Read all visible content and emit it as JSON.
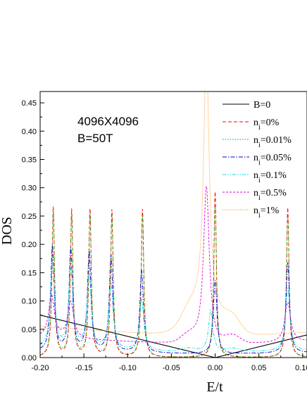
{
  "chart_data": {
    "type": "line",
    "xlabel": "E/t",
    "ylabel": "DOS",
    "xlim": [
      -0.2,
      0.105
    ],
    "ylim": [
      0.0,
      0.47
    ],
    "x_ticks": [
      "-0.20",
      "-0.15",
      "-0.10",
      "-0.05",
      "0.00",
      "0.05",
      "0.10"
    ],
    "x_tick_values": [
      -0.2,
      -0.15,
      -0.1,
      -0.05,
      0.0,
      0.05,
      0.1
    ],
    "y_ticks": [
      "0.00",
      "0.05",
      "0.10",
      "0.15",
      "0.20",
      "0.25",
      "0.30",
      "0.35",
      "0.40",
      "0.45"
    ],
    "y_tick_values": [
      0.0,
      0.05,
      0.1,
      0.15,
      0.2,
      0.25,
      0.3,
      0.35,
      0.4,
      0.45
    ],
    "annotations": [
      "4096X4096",
      "B=50T"
    ],
    "legend_position": "top-right",
    "series": [
      {
        "name": "B=0",
        "color": "#000000",
        "dash": "solid",
        "points": [
          [
            -0.2,
            0.075
          ],
          [
            0.0,
            0.0
          ],
          [
            0.105,
            0.04
          ]
        ]
      },
      {
        "name": "ni=0%",
        "label_main": "n",
        "label_sub": "i",
        "label_rest": "=0%",
        "color": "#ff0000",
        "dash": "dashed",
        "peaks": [
          [
            -0.185,
            0.265
          ],
          [
            -0.164,
            0.26
          ],
          [
            -0.143,
            0.26
          ],
          [
            -0.118,
            0.26
          ],
          [
            -0.083,
            0.262
          ],
          [
            0.0,
            0.293
          ],
          [
            0.083,
            0.265
          ]
        ],
        "width": 0.0017,
        "background": 0.0
      },
      {
        "name": "ni=0.01%",
        "label_main": "n",
        "label_sub": "i",
        "label_rest": "=0.01%",
        "color": "#00bb00",
        "dash": "dotted",
        "peaks": [
          [
            -0.185,
            0.255
          ],
          [
            -0.164,
            0.25
          ],
          [
            -0.143,
            0.25
          ],
          [
            -0.118,
            0.25
          ],
          [
            -0.083,
            0.25
          ],
          [
            0.0,
            0.27
          ],
          [
            0.083,
            0.25
          ]
        ],
        "width": 0.0019,
        "background": 0.0
      },
      {
        "name": "ni=0.05%",
        "label_main": "n",
        "label_sub": "i",
        "label_rest": "=0.05%",
        "color": "#0000cc",
        "dash": "dashdot",
        "peaks": [
          [
            -0.186,
            0.185
          ],
          [
            -0.165,
            0.18
          ],
          [
            -0.144,
            0.175
          ],
          [
            -0.119,
            0.17
          ],
          [
            -0.084,
            0.145
          ],
          [
            0.0,
            0.13
          ],
          [
            0.083,
            0.16
          ]
        ],
        "width": 0.0024,
        "background": 0.01
      },
      {
        "name": "ni=0.1%",
        "label_main": "n",
        "label_sub": "i",
        "label_rest": "=0.1%",
        "color": "#00dddd",
        "dash": "dashdotdot",
        "peaks": [
          [
            -0.186,
            0.15
          ],
          [
            -0.165,
            0.14
          ],
          [
            -0.144,
            0.13
          ],
          [
            -0.119,
            0.115
          ],
          [
            -0.084,
            0.09
          ],
          [
            -0.005,
            0.075
          ],
          [
            0.083,
            0.11
          ]
        ],
        "width": 0.003,
        "background": 0.015
      },
      {
        "name": "ni=0.5%",
        "label_main": "n",
        "label_sub": "i",
        "label_rest": "=0.5%",
        "color": "#dd00dd",
        "dash": "shortdash",
        "peaks": [
          [
            -0.187,
            0.075
          ],
          [
            -0.165,
            0.065
          ],
          [
            -0.01,
            0.28
          ],
          [
            0.083,
            0.07
          ]
        ],
        "width": 0.004,
        "background": 0.035
      },
      {
        "name": "ni=1%",
        "label_main": "n",
        "label_sub": "i",
        "label_rest": "=1%",
        "color": "#ff8800",
        "dash": "shortdot",
        "peaks": [
          [
            -0.01,
            0.46
          ]
        ],
        "width": 0.004,
        "background": 0.055
      }
    ]
  }
}
